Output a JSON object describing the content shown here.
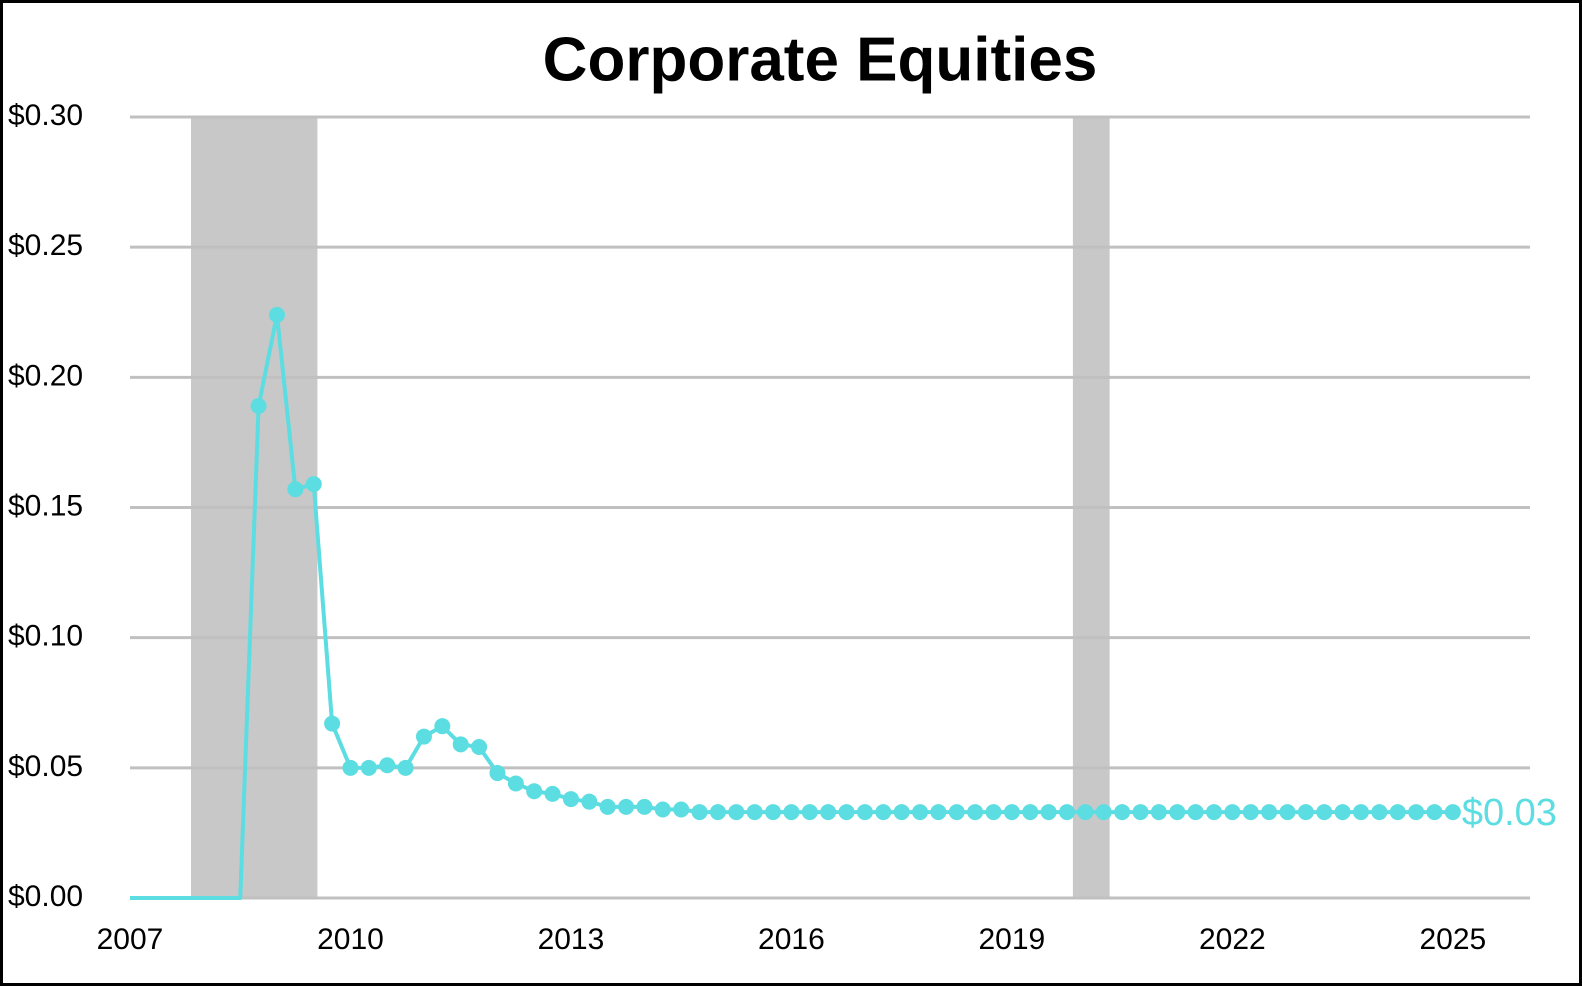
{
  "chart_data": {
    "type": "line",
    "title": "Corporate Equities",
    "x": [
      2007,
      2007.25,
      2007.5,
      2007.75,
      2008,
      2008.25,
      2008.5,
      2008.75,
      2009,
      2009.25,
      2009.5,
      2009.75,
      2010,
      2010.25,
      2010.5,
      2010.75,
      2011,
      2011.25,
      2011.5,
      2011.75,
      2012,
      2012.25,
      2012.5,
      2012.75,
      2013,
      2013.25,
      2013.5,
      2013.75,
      2014,
      2014.25,
      2014.5,
      2014.75,
      2015,
      2015.25,
      2015.5,
      2015.75,
      2016,
      2016.25,
      2016.5,
      2016.75,
      2017,
      2017.25,
      2017.5,
      2017.75,
      2018,
      2018.25,
      2018.5,
      2018.75,
      2019,
      2019.25,
      2019.5,
      2019.75,
      2020,
      2020.25,
      2020.5,
      2020.75,
      2021,
      2021.25,
      2021.5,
      2021.75,
      2022,
      2022.25,
      2022.5,
      2022.75,
      2023,
      2023.25,
      2023.5,
      2023.75,
      2024,
      2024.25,
      2024.5,
      2024.75,
      2025
    ],
    "series": [
      {
        "color": "#5cdde1",
        "values": [
          0,
          0,
          0,
          0,
          0,
          0,
          0,
          0.189,
          0.224,
          0.157,
          0.159,
          0.067,
          0.05,
          0.05,
          0.051,
          0.05,
          0.062,
          0.066,
          0.059,
          0.058,
          0.048,
          0.044,
          0.041,
          0.04,
          0.038,
          0.037,
          0.035,
          0.035,
          0.035,
          0.034,
          0.034,
          0.033,
          0.033,
          0.033,
          0.033,
          0.033,
          0.033,
          0.033,
          0.033,
          0.033,
          0.033,
          0.033,
          0.033,
          0.033,
          0.033,
          0.033,
          0.033,
          0.033,
          0.033,
          0.033,
          0.033,
          0.033,
          0.033,
          0.033,
          0.033,
          0.033,
          0.033,
          0.033,
          0.033,
          0.033,
          0.033,
          0.033,
          0.033,
          0.033,
          0.033,
          0.033,
          0.033,
          0.033,
          0.033,
          0.033,
          0.033,
          0.033,
          0.033
        ],
        "end_label": "$0.03"
      }
    ],
    "shaded_periods": [
      [
        2007.83,
        2009.55
      ],
      [
        2019.83,
        2020.33
      ]
    ],
    "shade_color": "#c8c8c8",
    "xlim": [
      2007,
      2026.05
    ],
    "xticks": [
      2007,
      2010,
      2013,
      2016,
      2019,
      2022,
      2025
    ],
    "ylim": [
      0,
      0.3
    ],
    "yticks": [
      {
        "value": 0,
        "label": "$0.00"
      },
      {
        "value": 0.05,
        "label": "$0.05"
      },
      {
        "value": 0.1,
        "label": "$0.10"
      },
      {
        "value": 0.15,
        "label": "$0.15"
      },
      {
        "value": 0.2,
        "label": "$0.20"
      },
      {
        "value": 0.25,
        "label": "$0.25"
      },
      {
        "value": 0.3,
        "label": "$0.30"
      }
    ],
    "grid": true
  }
}
